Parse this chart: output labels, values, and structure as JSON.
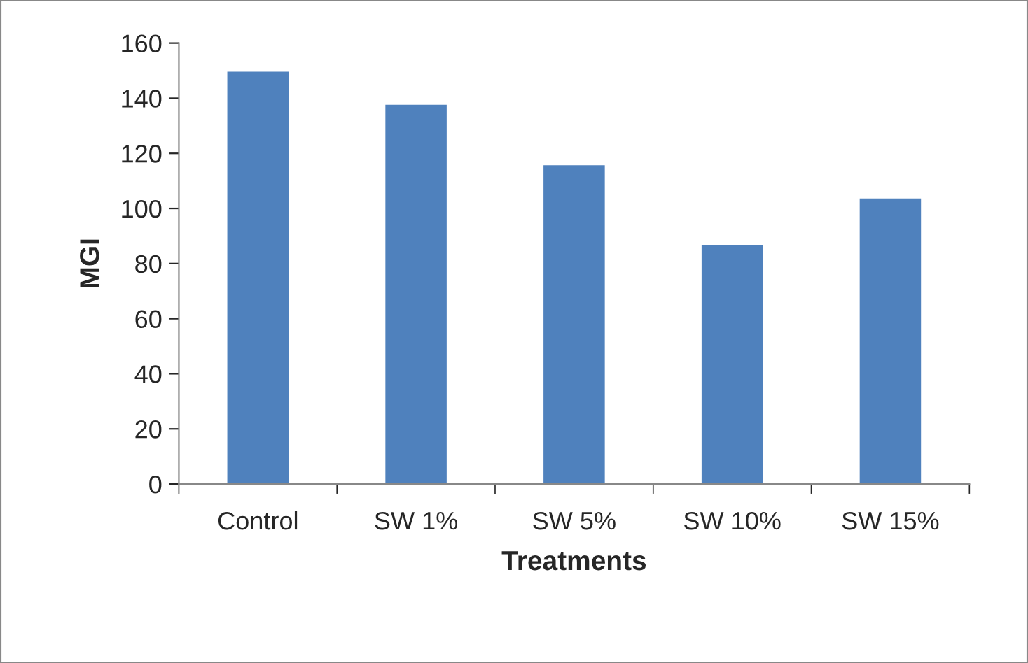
{
  "chart_data": {
    "type": "bar",
    "xlabel": "Treatments",
    "ylabel": "MGI",
    "categories": [
      "Control",
      "SW 1%",
      "SW 5%",
      "SW 10%",
      "SW 15%"
    ],
    "values": [
      150,
      138,
      116,
      87,
      104
    ],
    "color": "#4f81bd",
    "ylim": [
      0,
      160
    ],
    "yticks": [
      0,
      20,
      40,
      60,
      80,
      100,
      120,
      140,
      160
    ],
    "grid": false
  }
}
